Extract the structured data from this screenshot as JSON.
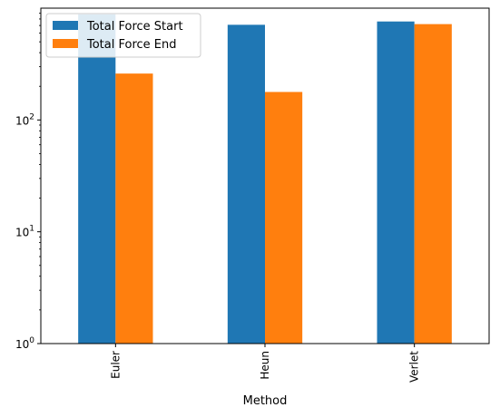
{
  "chart_data": {
    "type": "bar",
    "title": "",
    "xlabel": "Method",
    "ylabel": "",
    "yscale": "log",
    "ylim": [
      1,
      1000
    ],
    "categories": [
      "Euler",
      "Heun",
      "Verlet"
    ],
    "series": [
      {
        "name": "Total Force Start",
        "color": "#1f77b4",
        "values": [
          880,
          710,
          760
        ]
      },
      {
        "name": "Total Force End",
        "color": "#ff7f0e",
        "values": [
          260,
          178,
          720
        ]
      }
    ],
    "y_major_ticks": [
      {
        "value": 1,
        "base": "10",
        "exp": "0"
      },
      {
        "value": 10,
        "base": "10",
        "exp": "1"
      },
      {
        "value": 100,
        "base": "10",
        "exp": "2"
      }
    ],
    "grid": false,
    "legend_position": "top-left"
  }
}
